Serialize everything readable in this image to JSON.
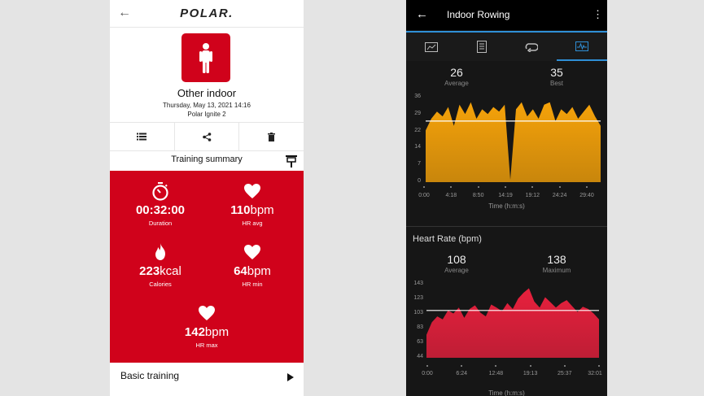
{
  "polar": {
    "logo": "POLAR.",
    "sport": {
      "title": "Other indoor",
      "date": "Thursday, May 13, 2021 14:16",
      "device": "Polar Ignite 2"
    },
    "actions": [
      {
        "icon": "list-icon"
      },
      {
        "icon": "share-icon"
      },
      {
        "icon": "trash-icon"
      }
    ],
    "summary_title": "Training summary",
    "stats": {
      "duration": {
        "value": "00:32:00",
        "unit": "",
        "label": "Duration"
      },
      "hr_avg": {
        "value": "110",
        "unit": "bpm",
        "label": "HR avg"
      },
      "calories": {
        "value": "223",
        "unit": "kcal",
        "label": "Calories"
      },
      "hr_min": {
        "value": "64",
        "unit": "bpm",
        "label": "HR min"
      },
      "hr_max": {
        "value": "142",
        "unit": "bpm",
        "label": "HR max"
      }
    },
    "basic_training": "Basic training",
    "colors": {
      "accent": "#d0021b"
    }
  },
  "garmin": {
    "title": "Indoor Rowing",
    "tabs": [
      {
        "icon": "map-icon"
      },
      {
        "icon": "document-icon"
      },
      {
        "icon": "laps-icon"
      },
      {
        "icon": "graph-icon",
        "active": true
      }
    ],
    "chart1": {
      "average": {
        "value": "26",
        "label": "Average"
      },
      "best": {
        "value": "35",
        "label": "Best"
      },
      "y_ticks": [
        "36",
        "29",
        "22",
        "14",
        "7",
        "0"
      ],
      "x_ticks": [
        "0:00",
        "4:18",
        "8:50",
        "14:19",
        "19:12",
        "24:24",
        "29:40"
      ],
      "axis_title": "Time (h:m:s)",
      "color": "#f5a20a"
    },
    "chart2": {
      "title": "Heart Rate (bpm)",
      "average": {
        "value": "108",
        "label": "Average"
      },
      "maximum": {
        "value": "138",
        "label": "Maximum"
      },
      "y_ticks": [
        "143",
        "123",
        "103",
        "83",
        "63",
        "44"
      ],
      "x_ticks": [
        "0:00",
        "6:24",
        "12:48",
        "19:13",
        "25:37",
        "32:01"
      ],
      "axis_title": "Time (h:m:s)",
      "color": "#e8203d"
    }
  },
  "chart_data": [
    {
      "type": "area",
      "x": [
        "0:00",
        "1:00",
        "2:00",
        "3:00",
        "4:00",
        "5:00",
        "6:00",
        "7:00",
        "8:00",
        "9:00",
        "10:00",
        "11:00",
        "12:00",
        "13:00",
        "14:00",
        "15:00",
        "16:00",
        "17:00",
        "18:00",
        "19:00",
        "20:00",
        "21:00",
        "22:00",
        "23:00",
        "24:00",
        "25:00",
        "26:00",
        "27:00",
        "28:00",
        "29:00",
        "30:00",
        "31:00"
      ],
      "series": [
        {
          "values": [
            22,
            27,
            30,
            28,
            32,
            24,
            33,
            29,
            34,
            27,
            31,
            29,
            32,
            30,
            33,
            1,
            31,
            34,
            28,
            31,
            27,
            33,
            34,
            26,
            31,
            29,
            32,
            27,
            30,
            33,
            28,
            24
          ]
        }
      ],
      "ylim": [
        0,
        36
      ],
      "average": 26,
      "xlabel": "Time (h:m:s)",
      "grid": false
    },
    {
      "type": "area",
      "x": [
        "0:00",
        "1:00",
        "2:00",
        "3:00",
        "4:00",
        "5:00",
        "6:00",
        "7:00",
        "8:00",
        "9:00",
        "10:00",
        "11:00",
        "12:00",
        "13:00",
        "14:00",
        "15:00",
        "16:00",
        "17:00",
        "18:00",
        "19:00",
        "20:00",
        "21:00",
        "22:00",
        "23:00",
        "24:00",
        "25:00",
        "26:00",
        "27:00",
        "28:00",
        "29:00",
        "30:00",
        "31:00",
        "32:00"
      ],
      "series": [
        {
          "name": "Heart Rate (bpm)",
          "values": [
            75,
            92,
            100,
            96,
            108,
            104,
            112,
            98,
            110,
            115,
            105,
            100,
            116,
            112,
            107,
            118,
            110,
            124,
            132,
            138,
            120,
            112,
            126,
            119,
            112,
            118,
            122,
            114,
            106,
            113,
            110,
            104,
            96
          ]
        }
      ],
      "ylim": [
        44,
        143
      ],
      "average": 108,
      "xlabel": "Time (h:m:s)",
      "grid": false
    }
  ]
}
